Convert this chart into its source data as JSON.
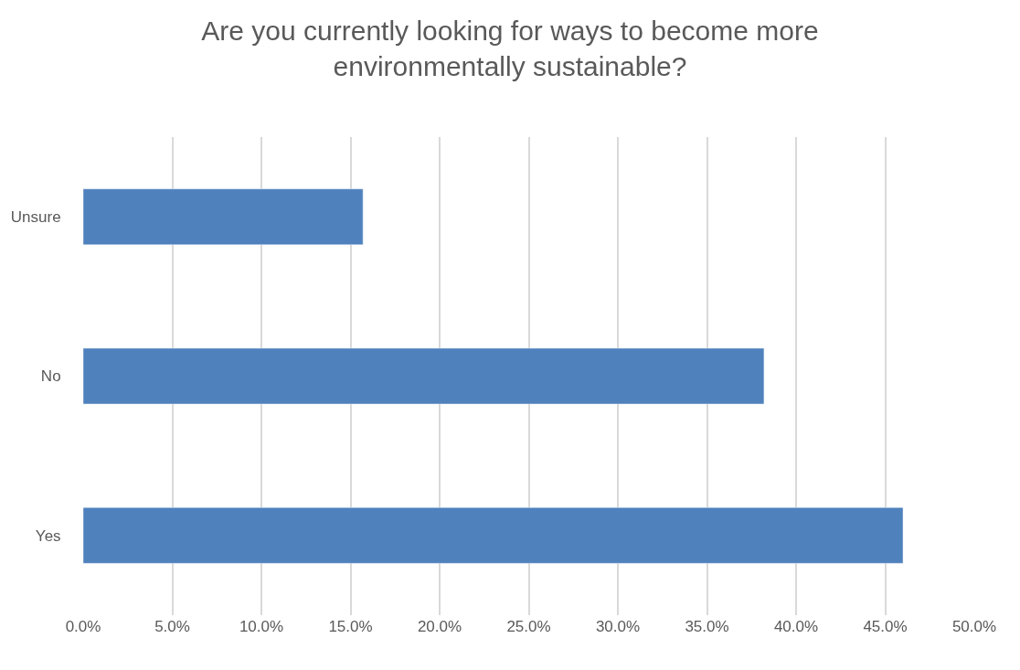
{
  "chart_data": {
    "type": "bar",
    "orientation": "horizontal",
    "title": "Are you currently looking for ways to become more environmentally sustainable?",
    "categories": [
      "Unsure",
      "No",
      "Yes"
    ],
    "values": [
      15.7,
      38.2,
      46.0
    ],
    "color": "#4f81bd",
    "xlim": [
      0,
      50
    ],
    "xticks": [
      {
        "value": 0,
        "label": "0.0%"
      },
      {
        "value": 5,
        "label": "5.0%"
      },
      {
        "value": 10,
        "label": "10.0%"
      },
      {
        "value": 15,
        "label": "15.0%"
      },
      {
        "value": 20,
        "label": "20.0%"
      },
      {
        "value": 25,
        "label": "25.0%"
      },
      {
        "value": 30,
        "label": "30.0%"
      },
      {
        "value": 35,
        "label": "35.0%"
      },
      {
        "value": 40,
        "label": "40.0%"
      },
      {
        "value": 45,
        "label": "45.0%"
      },
      {
        "value": 50,
        "label": "50.0%"
      }
    ],
    "grid": "x"
  }
}
